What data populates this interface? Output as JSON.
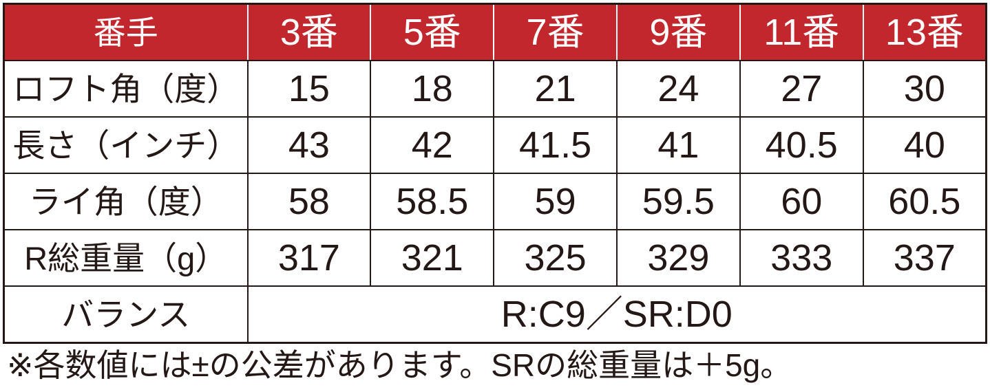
{
  "header": {
    "corner": "番手",
    "columns": [
      "3番",
      "5番",
      "7番",
      "9番",
      "11番",
      "13番"
    ]
  },
  "rows": [
    {
      "label": "ロフト角（度）",
      "values": [
        "15",
        "18",
        "21",
        "24",
        "27",
        "30"
      ]
    },
    {
      "label": "長さ（インチ）",
      "values": [
        "43",
        "42",
        "41.5",
        "41",
        "40.5",
        "40"
      ]
    },
    {
      "label": "ライ角（度）",
      "values": [
        "58",
        "58.5",
        "59",
        "59.5",
        "60",
        "60.5"
      ]
    },
    {
      "label": "R総重量（g）",
      "values": [
        "317",
        "321",
        "325",
        "329",
        "333",
        "337"
      ]
    }
  ],
  "balance": {
    "label": "バランス",
    "value": "R:C9／SR:D0"
  },
  "note": "※各数値には±の公差があります。SRの総重量は＋5g。",
  "colors": {
    "header_bg": "#c1272d",
    "border": "#231815"
  }
}
